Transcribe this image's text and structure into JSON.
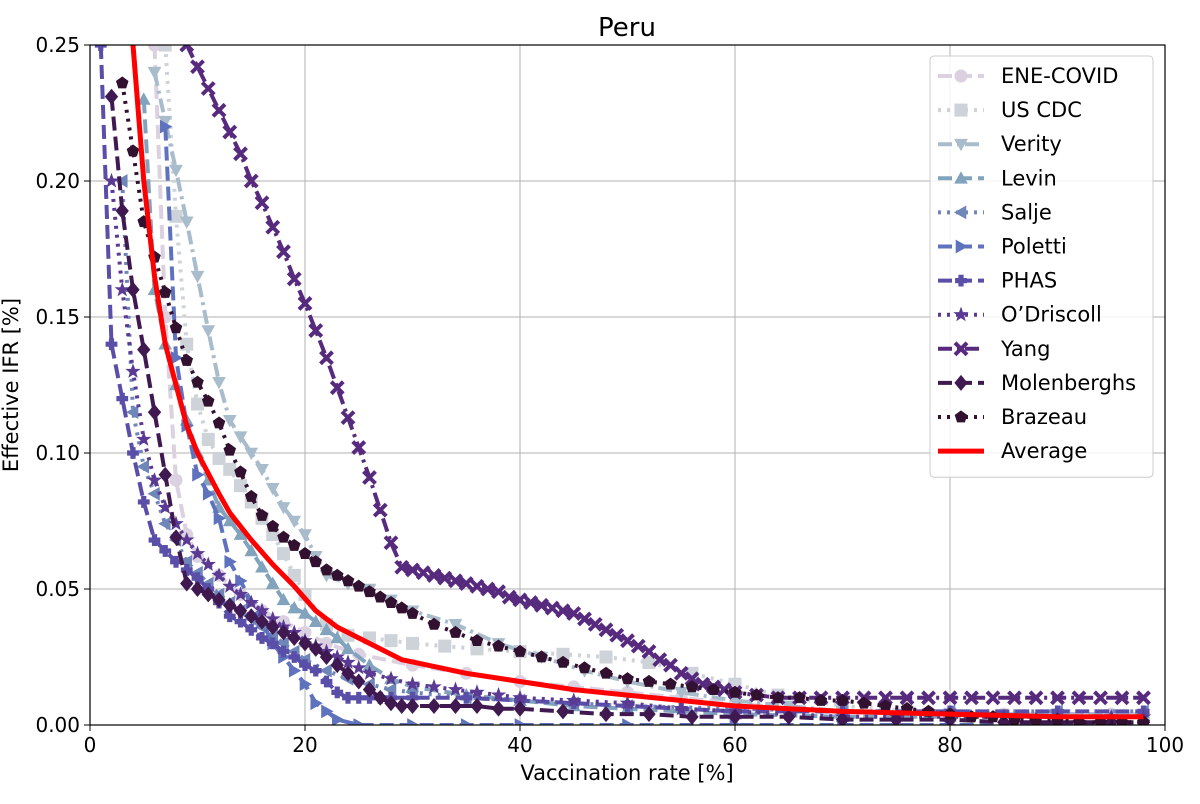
{
  "chart_data": {
    "type": "line",
    "title": "Peru",
    "xlabel": "Vaccination rate [%]",
    "ylabel": "Effective IFR [%]",
    "xlim": [
      0,
      100
    ],
    "ylim": [
      0,
      0.25
    ],
    "xticks": [
      "0",
      "20",
      "40",
      "60",
      "80",
      "100"
    ],
    "yticks": [
      "0.00",
      "0.05",
      "0.10",
      "0.15",
      "0.20",
      "0.25"
    ],
    "grid": true,
    "legend_position": "top-right",
    "series": [
      {
        "name": "ENE-COVID",
        "color": "#dbd1e1",
        "linestyle": "dashed",
        "marker": "circle",
        "x": [
          6,
          7,
          8,
          9,
          10,
          12,
          14,
          16,
          18,
          20,
          22,
          25,
          30,
          35,
          40,
          45,
          50,
          55,
          60,
          65,
          70,
          75,
          80,
          85,
          90,
          95,
          98
        ],
        "y": [
          0.25,
          0.15,
          0.09,
          0.07,
          0.062,
          0.055,
          0.048,
          0.042,
          0.038,
          0.034,
          0.03,
          0.026,
          0.022,
          0.019,
          0.016,
          0.014,
          0.012,
          0.01,
          0.008,
          0.006,
          0.005,
          0.004,
          0.004,
          0.004,
          0.004,
          0.004,
          0.004
        ]
      },
      {
        "name": "US CDC",
        "color": "#ced2d9",
        "linestyle": "dotted",
        "marker": "square",
        "x": [
          7,
          8,
          9,
          10,
          11,
          12,
          13,
          14,
          15,
          16,
          17,
          18,
          19,
          20,
          22,
          24,
          26,
          28,
          30,
          33,
          36,
          40,
          44,
          48,
          52,
          56,
          60,
          64,
          70,
          80,
          90,
          98
        ],
        "y": [
          0.25,
          0.187,
          0.14,
          0.118,
          0.105,
          0.098,
          0.094,
          0.088,
          0.082,
          0.076,
          0.07,
          0.063,
          0.055,
          0.048,
          0.037,
          0.033,
          0.032,
          0.031,
          0.03,
          0.029,
          0.028,
          0.027,
          0.026,
          0.025,
          0.023,
          0.019,
          0.015,
          0.011,
          0.007,
          0.004,
          0.003,
          0.003
        ]
      },
      {
        "name": "Verity",
        "color": "#a8bccb",
        "linestyle": "dashdot",
        "marker": "triangle-down",
        "x": [
          6,
          7,
          8,
          9,
          10,
          11,
          12,
          13,
          14,
          15,
          16,
          17,
          18,
          19,
          20,
          21,
          22,
          24,
          26,
          28,
          30,
          34,
          38,
          42,
          46,
          50,
          55,
          60,
          65,
          70,
          80,
          90,
          98
        ],
        "y": [
          0.24,
          0.222,
          0.204,
          0.185,
          0.165,
          0.145,
          0.126,
          0.112,
          0.106,
          0.1,
          0.094,
          0.087,
          0.08,
          0.075,
          0.07,
          0.062,
          0.055,
          0.052,
          0.05,
          0.046,
          0.042,
          0.037,
          0.03,
          0.025,
          0.02,
          0.016,
          0.012,
          0.009,
          0.007,
          0.005,
          0.004,
          0.004,
          0.004
        ]
      },
      {
        "name": "Levin",
        "color": "#82a3bd",
        "linestyle": "dashed",
        "marker": "triangle-up",
        "x": [
          5,
          6,
          7,
          8,
          9,
          10,
          11,
          12,
          13,
          14,
          15,
          16,
          17,
          18,
          19,
          20,
          21,
          22,
          23,
          24,
          26,
          28,
          30,
          35,
          40,
          45,
          50,
          60,
          70,
          80,
          90,
          98
        ],
        "y": [
          0.23,
          0.16,
          0.14,
          0.125,
          0.112,
          0.1,
          0.09,
          0.08,
          0.075,
          0.07,
          0.064,
          0.058,
          0.052,
          0.046,
          0.043,
          0.041,
          0.038,
          0.035,
          0.032,
          0.028,
          0.022,
          0.017,
          0.014,
          0.011,
          0.009,
          0.007,
          0.006,
          0.004,
          0.003,
          0.003,
          0.003,
          0.003
        ]
      },
      {
        "name": "Salje",
        "color": "#6f87b8",
        "linestyle": "dotted",
        "marker": "triangle-left",
        "x": [
          3,
          4,
          5,
          6,
          7,
          8,
          9,
          10,
          11,
          12,
          13,
          14,
          15,
          16,
          17,
          18,
          19,
          20,
          22,
          24,
          26,
          28,
          30,
          35,
          40,
          45,
          50,
          60,
          70,
          80,
          90,
          98
        ],
        "y": [
          0.2,
          0.115,
          0.095,
          0.085,
          0.074,
          0.068,
          0.06,
          0.056,
          0.052,
          0.048,
          0.045,
          0.042,
          0.039,
          0.036,
          0.033,
          0.03,
          0.027,
          0.024,
          0.02,
          0.017,
          0.015,
          0.013,
          0.012,
          0.01,
          0.009,
          0.008,
          0.007,
          0.006,
          0.005,
          0.005,
          0.005,
          0.005
        ]
      },
      {
        "name": "Poletti",
        "color": "#5f72be",
        "linestyle": "dashed",
        "marker": "triangle-right",
        "x": [
          7,
          8,
          9,
          10,
          11,
          12,
          13,
          14,
          15,
          16,
          17,
          18,
          19,
          20,
          21,
          22,
          23,
          25,
          30,
          35,
          40,
          50,
          60,
          70,
          80,
          90,
          98
        ],
        "y": [
          0.22,
          0.135,
          0.11,
          0.092,
          0.085,
          0.076,
          0.06,
          0.053,
          0.045,
          0.038,
          0.03,
          0.025,
          0.02,
          0.015,
          0.008,
          0.005,
          0.002,
          0.0,
          0.0,
          0.0,
          0.0,
          0.0,
          0.0,
          0.0,
          0.0,
          0.0,
          0.0
        ]
      },
      {
        "name": "PHAS",
        "color": "#5a4fa8",
        "linestyle": "dashed",
        "marker": "plus",
        "x": [
          1,
          2,
          3,
          4,
          5,
          6,
          7,
          8,
          9,
          10,
          11,
          12,
          13,
          14,
          15,
          16,
          17,
          18,
          19,
          20,
          21,
          22,
          23,
          24,
          25,
          26,
          27,
          28,
          30,
          35,
          40,
          45,
          50,
          55,
          60,
          70,
          80,
          90,
          98
        ],
        "y": [
          0.25,
          0.14,
          0.12,
          0.1,
          0.082,
          0.068,
          0.064,
          0.06,
          0.057,
          0.054,
          0.05,
          0.045,
          0.04,
          0.038,
          0.035,
          0.032,
          0.03,
          0.027,
          0.025,
          0.022,
          0.02,
          0.016,
          0.012,
          0.01,
          0.01,
          0.01,
          0.01,
          0.01,
          0.01,
          0.01,
          0.009,
          0.008,
          0.007,
          0.006,
          0.005,
          0.005,
          0.005,
          0.005,
          0.005
        ]
      },
      {
        "name": "O’Driscoll",
        "color": "#5b3a93",
        "linestyle": "dotted",
        "marker": "star",
        "x": [
          2,
          3,
          4,
          5,
          6,
          7,
          8,
          9,
          10,
          11,
          12,
          13,
          14,
          15,
          16,
          17,
          18,
          19,
          20,
          21,
          22,
          23,
          24,
          25,
          26,
          28,
          30,
          32,
          34,
          36,
          38,
          40,
          45,
          50,
          55,
          60,
          65,
          70,
          75,
          80,
          85,
          90,
          95,
          98
        ],
        "y": [
          0.2,
          0.16,
          0.13,
          0.105,
          0.09,
          0.08,
          0.074,
          0.068,
          0.063,
          0.059,
          0.055,
          0.051,
          0.048,
          0.045,
          0.042,
          0.039,
          0.036,
          0.034,
          0.031,
          0.029,
          0.027,
          0.025,
          0.023,
          0.021,
          0.019,
          0.017,
          0.015,
          0.014,
          0.013,
          0.012,
          0.011,
          0.01,
          0.009,
          0.008,
          0.006,
          0.005,
          0.004,
          0.003,
          0.003,
          0.003,
          0.003,
          0.003,
          0.003,
          0.003
        ]
      },
      {
        "name": "Yang",
        "color": "#572a7e",
        "linestyle": "dashdot",
        "marker": "x",
        "x": [
          9,
          10,
          11,
          12,
          13,
          14,
          15,
          16,
          17,
          18,
          19,
          20,
          21,
          22,
          23,
          24,
          25,
          26,
          27,
          28,
          29,
          30,
          31,
          32,
          33,
          34,
          35,
          36,
          37,
          38,
          39,
          40,
          41,
          42,
          43,
          44,
          45,
          46,
          47,
          48,
          49,
          50,
          51,
          52,
          53,
          54,
          55,
          56,
          57,
          58,
          59,
          60,
          62,
          64,
          66,
          68,
          70,
          72,
          74,
          76,
          78,
          80,
          82,
          84,
          86,
          88,
          90,
          92,
          94,
          96,
          98
        ],
        "y": [
          0.25,
          0.242,
          0.234,
          0.226,
          0.218,
          0.21,
          0.2,
          0.192,
          0.183,
          0.174,
          0.164,
          0.155,
          0.145,
          0.135,
          0.124,
          0.113,
          0.102,
          0.091,
          0.079,
          0.067,
          0.058,
          0.057,
          0.056,
          0.055,
          0.054,
          0.053,
          0.052,
          0.051,
          0.05,
          0.049,
          0.047,
          0.046,
          0.045,
          0.044,
          0.043,
          0.042,
          0.041,
          0.039,
          0.037,
          0.035,
          0.033,
          0.031,
          0.029,
          0.027,
          0.024,
          0.022,
          0.019,
          0.017,
          0.015,
          0.014,
          0.013,
          0.012,
          0.011,
          0.01,
          0.01,
          0.01,
          0.01,
          0.01,
          0.01,
          0.01,
          0.01,
          0.01,
          0.01,
          0.01,
          0.01,
          0.01,
          0.01,
          0.01,
          0.01,
          0.01,
          0.01
        ]
      },
      {
        "name": "Molenberghs",
        "color": "#3f1950",
        "linestyle": "dashed",
        "marker": "diamond",
        "x": [
          2,
          3,
          4,
          5,
          6,
          7,
          8,
          9,
          10,
          11,
          12,
          13,
          14,
          15,
          16,
          17,
          18,
          19,
          20,
          21,
          22,
          23,
          24,
          25,
          26,
          27,
          28,
          29,
          30,
          32,
          34,
          36,
          38,
          40,
          44,
          48,
          52,
          56,
          60,
          65,
          70,
          75,
          80,
          85,
          90,
          95,
          98
        ],
        "y": [
          0.231,
          0.189,
          0.16,
          0.138,
          0.115,
          0.092,
          0.069,
          0.052,
          0.05,
          0.048,
          0.046,
          0.044,
          0.042,
          0.04,
          0.038,
          0.036,
          0.034,
          0.032,
          0.03,
          0.028,
          0.025,
          0.022,
          0.019,
          0.016,
          0.013,
          0.01,
          0.008,
          0.007,
          0.007,
          0.007,
          0.007,
          0.007,
          0.006,
          0.006,
          0.005,
          0.004,
          0.004,
          0.003,
          0.003,
          0.003,
          0.002,
          0.002,
          0.002,
          0.001,
          0.001,
          0.001,
          0.001
        ]
      },
      {
        "name": "Brazeau",
        "color": "#32102f",
        "linestyle": "dotted",
        "marker": "pentagon",
        "x": [
          3,
          4,
          5,
          6,
          7,
          8,
          9,
          10,
          11,
          12,
          13,
          14,
          15,
          16,
          17,
          18,
          19,
          20,
          21,
          22,
          23,
          24,
          25,
          26,
          27,
          28,
          29,
          30,
          32,
          34,
          36,
          38,
          40,
          42,
          44,
          46,
          48,
          50,
          52,
          54,
          56,
          58,
          60,
          62,
          64,
          66,
          68,
          70,
          72,
          74,
          76,
          78,
          80,
          82,
          84,
          86,
          88,
          90,
          92,
          94,
          96,
          98
        ],
        "y": [
          0.236,
          0.211,
          0.185,
          0.172,
          0.159,
          0.146,
          0.134,
          0.126,
          0.119,
          0.111,
          0.101,
          0.093,
          0.084,
          0.077,
          0.073,
          0.069,
          0.066,
          0.063,
          0.06,
          0.057,
          0.055,
          0.053,
          0.051,
          0.049,
          0.047,
          0.045,
          0.043,
          0.041,
          0.037,
          0.034,
          0.031,
          0.029,
          0.027,
          0.025,
          0.023,
          0.021,
          0.019,
          0.017,
          0.016,
          0.015,
          0.014,
          0.013,
          0.012,
          0.011,
          0.01,
          0.01,
          0.009,
          0.009,
          0.008,
          0.007,
          0.006,
          0.005,
          0.004,
          0.003,
          0.003,
          0.002,
          0.002,
          0.002,
          0.001,
          0.001,
          0.001,
          0.001
        ]
      },
      {
        "name": "Average",
        "color": "#ff0000",
        "linestyle": "solid",
        "marker": "none",
        "x": [
          4,
          5,
          6,
          7,
          8,
          9,
          10,
          12,
          13,
          15,
          17,
          19,
          21,
          23,
          25,
          29,
          35,
          40,
          45,
          50,
          55,
          60,
          70,
          80,
          90,
          98
        ],
        "y": [
          0.25,
          0.2,
          0.165,
          0.14,
          0.125,
          0.11,
          0.1,
          0.085,
          0.078,
          0.068,
          0.059,
          0.051,
          0.042,
          0.036,
          0.032,
          0.024,
          0.019,
          0.016,
          0.013,
          0.011,
          0.009,
          0.007,
          0.005,
          0.004,
          0.003,
          0.003
        ]
      }
    ]
  }
}
